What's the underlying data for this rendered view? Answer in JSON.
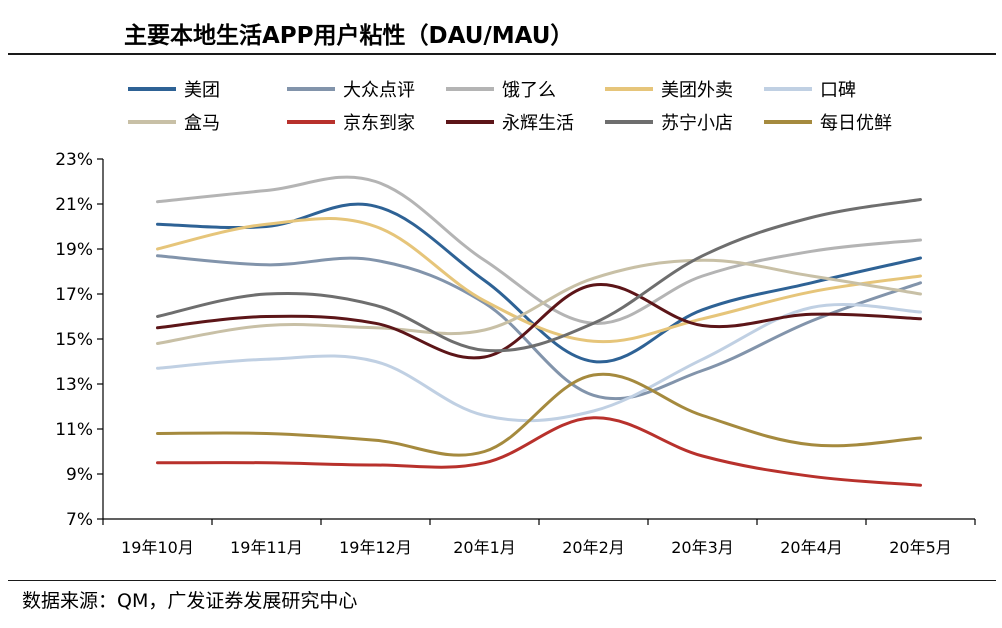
{
  "header": {
    "title": "主要本地生活APP用户粘性（DAU/MAU）"
  },
  "footer": {
    "source": "数据来源：QM，广发证券发展研究中心"
  },
  "chart_data": {
    "type": "line",
    "title": "主要本地生活APP用户粘性（DAU/MAU）",
    "xlabel": "",
    "ylabel": "",
    "ylim": [
      7,
      23
    ],
    "yticks": [
      7,
      9,
      11,
      13,
      15,
      17,
      19,
      21,
      23
    ],
    "ytick_labels": [
      "7%",
      "9%",
      "11%",
      "13%",
      "15%",
      "17%",
      "19%",
      "21%",
      "23%"
    ],
    "categories": [
      "19年10月",
      "19年11月",
      "19年12月",
      "20年1月",
      "20年2月",
      "20年3月",
      "20年4月",
      "20年5月"
    ],
    "grid": false,
    "legend_position": "top",
    "series": [
      {
        "name": "美团",
        "color": "#2e6295",
        "values": [
          20.1,
          20.0,
          20.9,
          17.6,
          14.0,
          16.3,
          17.5,
          18.6
        ]
      },
      {
        "name": "大众点评",
        "color": "#8294ab",
        "values": [
          18.7,
          18.3,
          18.5,
          16.6,
          12.5,
          13.6,
          15.8,
          17.5
        ]
      },
      {
        "name": "饿了么",
        "color": "#b4b4b4",
        "values": [
          21.1,
          21.6,
          22.0,
          18.5,
          15.7,
          17.8,
          18.9,
          19.4
        ]
      },
      {
        "name": "美团外卖",
        "color": "#e6c57a",
        "values": [
          19.0,
          20.1,
          20.0,
          16.7,
          14.9,
          15.9,
          17.1,
          17.8
        ]
      },
      {
        "name": "口碑",
        "color": "#c0d0e3",
        "values": [
          13.7,
          14.1,
          14.0,
          11.6,
          11.8,
          14.1,
          16.4,
          16.2
        ]
      },
      {
        "name": "盒马",
        "color": "#c8c0a6",
        "values": [
          14.8,
          15.6,
          15.5,
          15.4,
          17.7,
          18.5,
          17.8,
          17.0
        ]
      },
      {
        "name": "京东到家",
        "color": "#b8312c",
        "values": [
          9.5,
          9.5,
          9.4,
          9.5,
          11.5,
          9.8,
          8.9,
          8.5
        ]
      },
      {
        "name": "永辉生活",
        "color": "#5c1518",
        "values": [
          15.5,
          16.0,
          15.7,
          14.2,
          17.4,
          15.6,
          16.1,
          15.9
        ]
      },
      {
        "name": "苏宁小店",
        "color": "#6e6e6e",
        "values": [
          16.0,
          17.0,
          16.5,
          14.5,
          15.7,
          18.7,
          20.4,
          21.2
        ]
      },
      {
        "name": "每日优鲜",
        "color": "#a58a3e",
        "values": [
          10.8,
          10.8,
          10.5,
          10.0,
          13.4,
          11.6,
          10.3,
          10.6
        ]
      }
    ]
  }
}
